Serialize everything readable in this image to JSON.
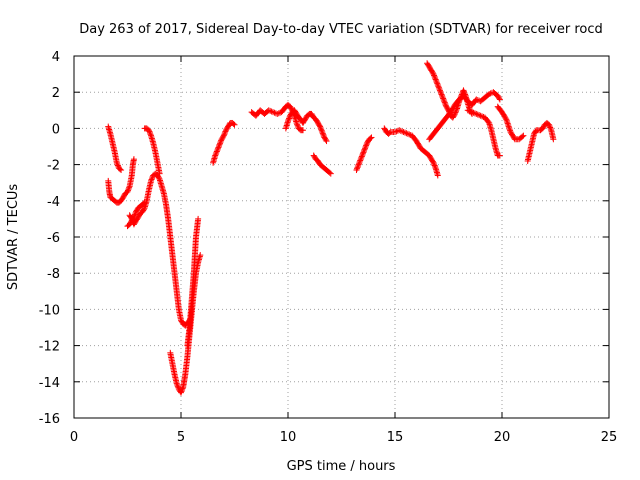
{
  "chart_data": {
    "type": "scatter",
    "title": "Day 263 of 2017, Sidereal Day-to-day VTEC variation (SDTVAR) for receiver rocd",
    "xlabel": "GPS time / hours",
    "ylabel": "SDTVAR / TECUs",
    "xlim": [
      0,
      25
    ],
    "ylim": [
      -16,
      4
    ],
    "xticks": [
      0,
      5,
      10,
      15,
      20,
      25
    ],
    "yticks": [
      -16,
      -14,
      -12,
      -10,
      -8,
      -6,
      -4,
      -2,
      0,
      2,
      4
    ],
    "grid": true,
    "marker": "+",
    "colors": {
      "points": "#ff0000",
      "grid": "#a0a0a0",
      "axes": "#000000"
    },
    "segments": [
      [
        [
          1.6,
          0.1
        ],
        [
          1.7,
          -0.3
        ],
        [
          1.8,
          -0.8
        ],
        [
          1.9,
          -1.3
        ],
        [
          2.0,
          -1.9
        ],
        [
          2.1,
          -2.2
        ],
        [
          2.2,
          -2.3
        ]
      ],
      [
        [
          1.6,
          -2.9
        ],
        [
          1.65,
          -3.5
        ],
        [
          1.7,
          -3.8
        ],
        [
          1.8,
          -3.9
        ],
        [
          1.9,
          -4.0
        ],
        [
          2.0,
          -4.1
        ],
        [
          2.1,
          -4.1
        ],
        [
          2.2,
          -4.0
        ],
        [
          2.3,
          -3.8
        ],
        [
          2.4,
          -3.6
        ],
        [
          2.5,
          -3.5
        ],
        [
          2.6,
          -3.2
        ],
        [
          2.7,
          -2.6
        ],
        [
          2.75,
          -2.0
        ],
        [
          2.8,
          -1.7
        ]
      ],
      [
        [
          2.5,
          -5.4
        ],
        [
          2.6,
          -5.3
        ],
        [
          2.7,
          -5.1
        ],
        [
          2.8,
          -4.9
        ],
        [
          2.9,
          -4.6
        ],
        [
          3.0,
          -4.4
        ],
        [
          3.1,
          -4.3
        ],
        [
          3.2,
          -4.2
        ],
        [
          3.3,
          -4.1
        ]
      ],
      [
        [
          2.6,
          -4.8
        ],
        [
          2.7,
          -5.0
        ],
        [
          2.8,
          -5.3
        ],
        [
          2.9,
          -5.1
        ],
        [
          3.0,
          -4.9
        ],
        [
          3.1,
          -4.7
        ],
        [
          3.2,
          -4.6
        ],
        [
          3.3,
          -4.4
        ],
        [
          3.4,
          -4.0
        ],
        [
          3.5,
          -3.4
        ],
        [
          3.6,
          -2.9
        ],
        [
          3.7,
          -2.6
        ],
        [
          3.8,
          -2.5
        ],
        [
          3.9,
          -2.6
        ],
        [
          4.0,
          -2.8
        ],
        [
          4.1,
          -3.2
        ],
        [
          4.2,
          -3.6
        ],
        [
          4.3,
          -4.2
        ],
        [
          4.4,
          -5.0
        ],
        [
          4.5,
          -6.0
        ],
        [
          4.6,
          -7.0
        ],
        [
          4.7,
          -8.0
        ],
        [
          4.8,
          -9.0
        ],
        [
          4.9,
          -10.0
        ],
        [
          5.0,
          -10.6
        ],
        [
          5.1,
          -10.8
        ],
        [
          5.2,
          -10.9
        ],
        [
          5.3,
          -10.7
        ]
      ],
      [
        [
          3.3,
          0.0
        ],
        [
          3.4,
          0.0
        ],
        [
          3.5,
          -0.1
        ],
        [
          3.6,
          -0.4
        ],
        [
          3.7,
          -0.8
        ],
        [
          3.8,
          -1.3
        ],
        [
          3.9,
          -1.9
        ],
        [
          4.0,
          -2.5
        ]
      ],
      [
        [
          4.5,
          -12.4
        ],
        [
          4.6,
          -13.0
        ],
        [
          4.7,
          -13.6
        ],
        [
          4.8,
          -14.1
        ],
        [
          4.9,
          -14.4
        ],
        [
          5.0,
          -14.6
        ],
        [
          5.1,
          -14.3
        ],
        [
          5.2,
          -13.6
        ],
        [
          5.3,
          -12.6
        ],
        [
          5.4,
          -11.4
        ],
        [
          5.5,
          -10.2
        ],
        [
          5.6,
          -9.0
        ],
        [
          5.7,
          -8.0
        ],
        [
          5.8,
          -7.4
        ],
        [
          5.9,
          -7.0
        ]
      ],
      [
        [
          5.3,
          -12.0
        ],
        [
          5.4,
          -11.0
        ],
        [
          5.5,
          -9.5
        ],
        [
          5.6,
          -8.0
        ],
        [
          5.65,
          -7.0
        ],
        [
          5.7,
          -6.0
        ],
        [
          5.75,
          -5.5
        ],
        [
          5.8,
          -5.0
        ]
      ],
      [
        [
          6.5,
          -1.9
        ],
        [
          6.6,
          -1.5
        ],
        [
          6.7,
          -1.2
        ],
        [
          6.8,
          -0.9
        ],
        [
          6.9,
          -0.6
        ],
        [
          7.0,
          -0.4
        ],
        [
          7.1,
          -0.1
        ],
        [
          7.2,
          0.1
        ],
        [
          7.3,
          0.3
        ],
        [
          7.4,
          0.3
        ],
        [
          7.5,
          0.2
        ]
      ],
      [
        [
          8.3,
          0.9
        ],
        [
          8.5,
          0.7
        ],
        [
          8.7,
          1.0
        ],
        [
          8.9,
          0.8
        ],
        [
          9.1,
          1.0
        ],
        [
          9.3,
          0.9
        ],
        [
          9.5,
          0.8
        ],
        [
          9.7,
          0.9
        ],
        [
          9.9,
          1.2
        ],
        [
          10.0,
          1.3
        ],
        [
          10.1,
          1.2
        ],
        [
          10.2,
          1.0
        ],
        [
          10.3,
          0.7
        ],
        [
          10.4,
          0.3
        ],
        [
          10.5,
          0.0
        ],
        [
          10.6,
          -0.1
        ],
        [
          10.7,
          -0.1
        ]
      ],
      [
        [
          9.9,
          0.0
        ],
        [
          10.0,
          0.4
        ],
        [
          10.1,
          0.7
        ],
        [
          10.2,
          0.9
        ],
        [
          10.3,
          1.0
        ],
        [
          10.4,
          0.8
        ],
        [
          10.5,
          0.6
        ],
        [
          10.6,
          0.5
        ],
        [
          10.7,
          0.3
        ],
        [
          10.8,
          0.5
        ],
        [
          10.9,
          0.7
        ],
        [
          11.0,
          0.8
        ],
        [
          11.1,
          0.8
        ],
        [
          11.2,
          0.6
        ],
        [
          11.3,
          0.5
        ],
        [
          11.4,
          0.3
        ],
        [
          11.5,
          0.1
        ],
        [
          11.6,
          -0.2
        ],
        [
          11.7,
          -0.5
        ],
        [
          11.8,
          -0.7
        ]
      ],
      [
        [
          11.2,
          -1.5
        ],
        [
          11.3,
          -1.7
        ],
        [
          11.4,
          -1.8
        ],
        [
          11.5,
          -2.0
        ],
        [
          11.6,
          -2.1
        ],
        [
          11.7,
          -2.2
        ],
        [
          11.8,
          -2.3
        ],
        [
          11.9,
          -2.4
        ],
        [
          12.0,
          -2.5
        ]
      ],
      [
        [
          13.2,
          -2.3
        ],
        [
          13.3,
          -2.0
        ],
        [
          13.4,
          -1.7
        ],
        [
          13.5,
          -1.4
        ],
        [
          13.6,
          -1.1
        ],
        [
          13.7,
          -0.8
        ],
        [
          13.8,
          -0.6
        ],
        [
          13.9,
          -0.5
        ]
      ],
      [
        [
          14.5,
          0.0
        ],
        [
          14.6,
          -0.2
        ],
        [
          14.7,
          -0.3
        ],
        [
          14.8,
          -0.2
        ],
        [
          15.0,
          -0.2
        ],
        [
          15.2,
          -0.1
        ],
        [
          15.4,
          -0.2
        ],
        [
          15.6,
          -0.3
        ],
        [
          15.8,
          -0.4
        ],
        [
          16.0,
          -0.7
        ],
        [
          16.2,
          -1.1
        ],
        [
          16.4,
          -1.3
        ],
        [
          16.6,
          -1.5
        ],
        [
          16.8,
          -1.9
        ],
        [
          16.9,
          -2.2
        ],
        [
          17.0,
          -2.6
        ]
      ],
      [
        [
          16.5,
          3.6
        ],
        [
          16.6,
          3.4
        ],
        [
          16.7,
          3.2
        ],
        [
          16.8,
          3.0
        ],
        [
          16.9,
          2.7
        ],
        [
          17.0,
          2.4
        ],
        [
          17.1,
          2.1
        ],
        [
          17.2,
          1.8
        ],
        [
          17.3,
          1.5
        ],
        [
          17.4,
          1.2
        ],
        [
          17.5,
          1.0
        ],
        [
          17.6,
          0.7
        ],
        [
          17.7,
          0.6
        ],
        [
          17.8,
          0.8
        ],
        [
          17.9,
          1.1
        ],
        [
          18.0,
          1.5
        ],
        [
          18.1,
          1.8
        ],
        [
          18.2,
          2.1
        ],
        [
          18.3,
          1.8
        ],
        [
          18.4,
          1.4
        ],
        [
          18.5,
          1.0
        ],
        [
          18.6,
          0.8
        ]
      ],
      [
        [
          16.6,
          -0.6
        ],
        [
          16.8,
          -0.3
        ],
        [
          17.0,
          0.0
        ],
        [
          17.2,
          0.3
        ],
        [
          17.4,
          0.6
        ],
        [
          17.6,
          0.9
        ],
        [
          17.8,
          1.3
        ],
        [
          18.0,
          1.6
        ],
        [
          18.2,
          1.8
        ],
        [
          18.4,
          1.5
        ],
        [
          18.6,
          1.3
        ],
        [
          18.8,
          1.6
        ],
        [
          19.0,
          1.5
        ],
        [
          19.2,
          1.7
        ],
        [
          19.4,
          1.9
        ],
        [
          19.6,
          2.0
        ],
        [
          19.8,
          1.8
        ],
        [
          19.9,
          1.6
        ]
      ],
      [
        [
          18.4,
          1.0
        ],
        [
          18.6,
          0.9
        ],
        [
          18.8,
          0.8
        ],
        [
          19.0,
          0.7
        ],
        [
          19.2,
          0.6
        ],
        [
          19.4,
          0.3
        ],
        [
          19.5,
          -0.1
        ],
        [
          19.6,
          -0.6
        ],
        [
          19.7,
          -1.1
        ],
        [
          19.8,
          -1.5
        ],
        [
          19.9,
          -1.5
        ]
      ],
      [
        [
          19.8,
          1.2
        ],
        [
          20.0,
          0.9
        ],
        [
          20.2,
          0.5
        ],
        [
          20.4,
          -0.2
        ],
        [
          20.6,
          -0.6
        ],
        [
          20.8,
          -0.6
        ],
        [
          21.0,
          -0.4
        ]
      ],
      [
        [
          21.2,
          -1.8
        ],
        [
          21.3,
          -1.3
        ],
        [
          21.4,
          -0.8
        ],
        [
          21.5,
          -0.3
        ],
        [
          21.6,
          -0.1
        ],
        [
          21.8,
          -0.1
        ],
        [
          21.9,
          0.0
        ],
        [
          22.0,
          0.2
        ],
        [
          22.1,
          0.3
        ],
        [
          22.2,
          0.2
        ],
        [
          22.3,
          -0.1
        ],
        [
          22.4,
          -0.6
        ]
      ]
    ]
  }
}
